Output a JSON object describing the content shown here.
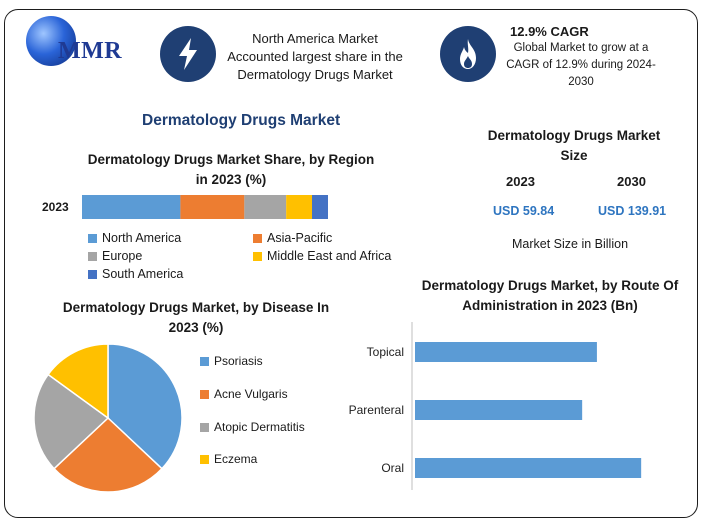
{
  "header": {
    "logo_text": "MMR",
    "north_america_text": "North America Market Accounted largest share in the Dermatology Drugs Market",
    "cagr_title": "12.9% CAGR",
    "cagr_text": "Global Market to grow at a CAGR of 12.9% during 2024-2030"
  },
  "main_title": "Dermatology Drugs Market",
  "market_size": {
    "title": "Dermatology Drugs Market Size",
    "year_a": "2023",
    "year_b": "2030",
    "value_a": "USD 59.84",
    "value_b": "USD 139.91",
    "note": "Market Size in Billion"
  },
  "colors": {
    "north_america": "#5b9bd5",
    "asia_pacific": "#ed7d31",
    "europe": "#a5a5a5",
    "mea": "#ffc000",
    "south_america": "#4472c4",
    "bar_blue": "#5b9bd5"
  },
  "chart_data": [
    {
      "type": "bar",
      "orientation": "horizontal-stacked",
      "title": "Dermatology Drugs Market Share, by Region in 2023 (%)",
      "categories": [
        "2023"
      ],
      "series": [
        {
          "name": "North America",
          "values": [
            40
          ]
        },
        {
          "name": "Asia-Pacific",
          "values": [
            26
          ]
        },
        {
          "name": "Europe",
          "values": [
            17
          ]
        },
        {
          "name": "Middle East and Africa",
          "values": [
            10.5
          ]
        },
        {
          "name": "South America",
          "values": [
            6.5
          ]
        }
      ],
      "legend": "bottom"
    },
    {
      "type": "pie",
      "title": "Dermatology Drugs Market, by Disease In 2023 (%)",
      "labels": [
        "Psoriasis",
        "Acne Vulgaris",
        "Atopic Dermatitis",
        "Eczema"
      ],
      "values": [
        37,
        26,
        22,
        15
      ],
      "legend": "right"
    },
    {
      "type": "bar",
      "orientation": "horizontal",
      "title": "Dermatology Drugs Market, by Route Of Administration in 2023 (Bn)",
      "categories": [
        "Topical",
        "Parenteral",
        "Oral"
      ],
      "values": [
        18.5,
        17,
        23
      ],
      "xlim": [
        0,
        24
      ],
      "grid": false
    }
  ]
}
